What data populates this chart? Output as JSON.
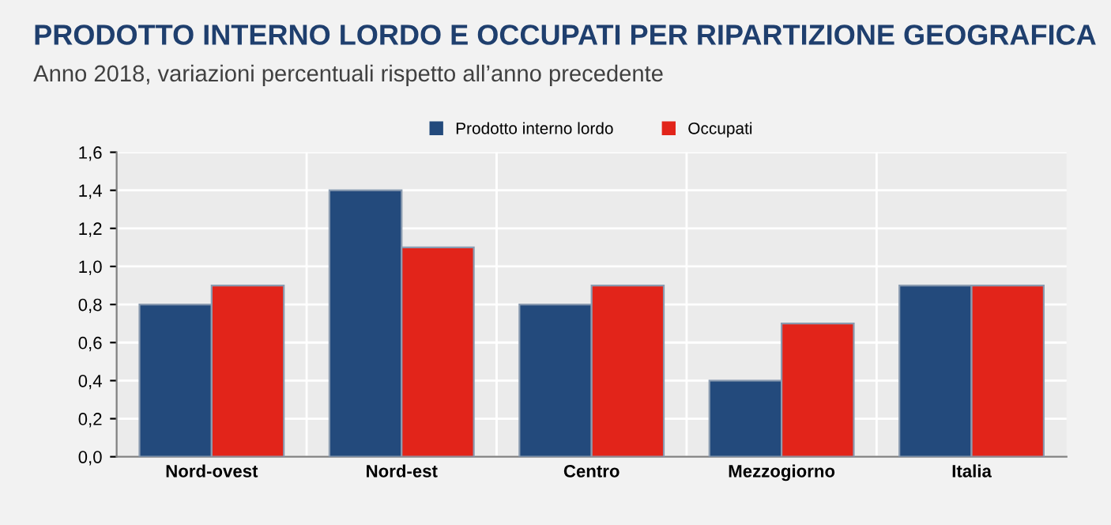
{
  "chart_data": {
    "type": "bar",
    "title": "PRODOTTO INTERNO LORDO E OCCUPATI PER RIPARTIZIONE GEOGRAFICA",
    "subtitle": "Anno 2018, variazioni percentuali rispetto all’anno precedente",
    "categories": [
      "Nord-ovest",
      "Nord-est",
      "Centro",
      "Mezzogiorno",
      "Italia"
    ],
    "series": [
      {
        "name": "Prodotto interno lordo",
        "color": "#234a7c",
        "values": [
          0.8,
          1.4,
          0.8,
          0.4,
          0.9
        ]
      },
      {
        "name": "Occupati",
        "color": "#e2241a",
        "values": [
          0.9,
          1.1,
          0.9,
          0.7,
          0.9
        ]
      }
    ],
    "ylim": [
      0,
      1.6
    ],
    "yticks": [
      {
        "value": 0,
        "label": "0,0"
      },
      {
        "value": 0.2,
        "label": "0,2"
      },
      {
        "value": 0.4,
        "label": "0,4"
      },
      {
        "value": 0.6,
        "label": "0,6"
      },
      {
        "value": 0.8,
        "label": "0,8"
      },
      {
        "value": 1.0,
        "label": "1,0"
      },
      {
        "value": 1.2,
        "label": "1,2"
      },
      {
        "value": 1.4,
        "label": "1,4"
      },
      {
        "value": 1.6,
        "label": "1,6"
      }
    ],
    "grid": "y",
    "legend": "top"
  }
}
